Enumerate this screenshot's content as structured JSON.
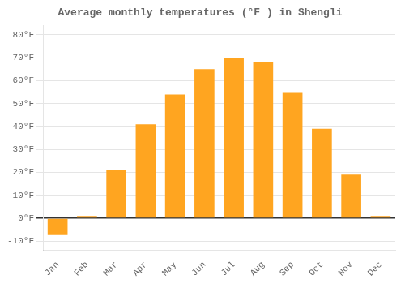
{
  "chart_data": {
    "type": "bar",
    "title": "Average monthly temperatures (°F ) in Shengli",
    "categories": [
      "Jan",
      "Feb",
      "Mar",
      "Apr",
      "May",
      "Jun",
      "Jul",
      "Aug",
      "Sep",
      "Oct",
      "Nov",
      "Dec"
    ],
    "values": [
      -7,
      1,
      21,
      41,
      54,
      65,
      70,
      68,
      55,
      39,
      19,
      1
    ],
    "color": "#FFA520",
    "ylim": [
      -14,
      84
    ],
    "yticks": [
      {
        "value": -10,
        "label": "-10°F"
      },
      {
        "value": 0,
        "label": "0°F"
      },
      {
        "value": 10,
        "label": "10°F"
      },
      {
        "value": 20,
        "label": "20°F"
      },
      {
        "value": 30,
        "label": "30°F"
      },
      {
        "value": 40,
        "label": "40°F"
      },
      {
        "value": 50,
        "label": "50°F"
      },
      {
        "value": 60,
        "label": "60°F"
      },
      {
        "value": 70,
        "label": "70°F"
      },
      {
        "value": 80,
        "label": "80°F"
      }
    ],
    "grid": true
  }
}
